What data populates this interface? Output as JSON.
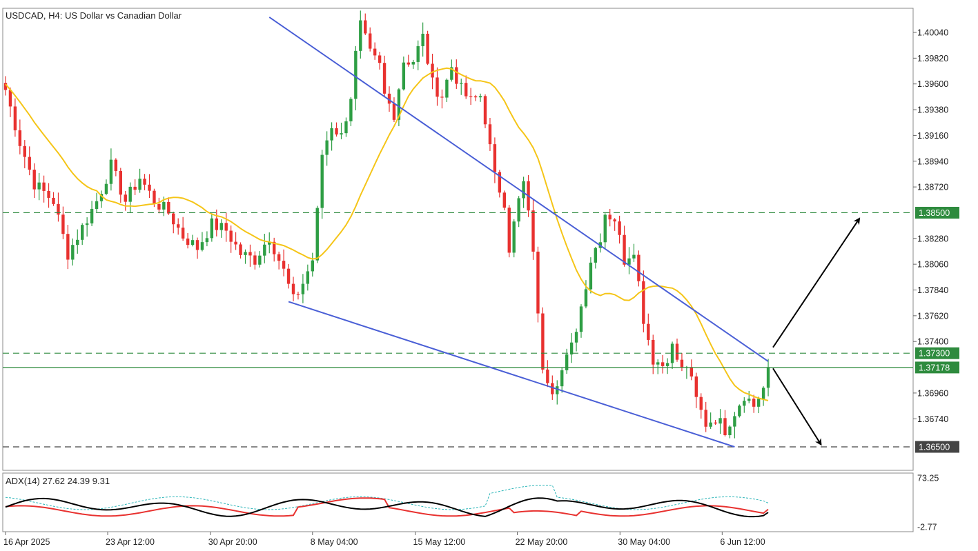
{
  "chart_data": {
    "type": "candlestick",
    "title": "USDCAD, H4:  US Dollar vs Canadian Dollar",
    "price_axis": {
      "range": [
        1.364,
        1.4055
      ],
      "ticks": [
        "1.40040",
        "1.39820",
        "1.39600",
        "1.39380",
        "1.39160",
        "1.38940",
        "1.38720",
        "1.38500",
        "1.38280",
        "1.38060",
        "1.37840",
        "1.37620",
        "1.37400",
        "1.37300",
        "1.37178",
        "1.36960",
        "1.36740",
        "1.36500"
      ]
    },
    "time_axis": {
      "ticks": [
        "16 Apr 2025",
        "23 Apr 12:00",
        "30 Apr 20:00",
        "8 May 04:00",
        "15 May 12:00",
        "22 May 20:00",
        "30 May 04:00",
        "6 Jun 12:00"
      ]
    },
    "levels": [
      {
        "price": 1.385,
        "label": "1.38500",
        "style": "dashed",
        "color": "#2e8b3e"
      },
      {
        "price": 1.373,
        "label": "1.37300",
        "style": "dashed",
        "color": "#2e8b3e"
      },
      {
        "price": 1.37178,
        "label": "1.37178",
        "style": "solid",
        "color": "#2e8b3e"
      },
      {
        "price": 1.365,
        "label": "1.36500",
        "style": "dashed",
        "color": "#444444"
      }
    ],
    "wedge_lines": [
      {
        "from": {
          "bar": 55,
          "price": 1.4017
        },
        "to": {
          "bar": 159,
          "price": 1.3723
        }
      },
      {
        "from": {
          "bar": 59,
          "price": 1.3774
        },
        "to": {
          "bar": 152,
          "price": 1.365
        }
      }
    ],
    "arrows": [
      {
        "from": {
          "bar": 160,
          "price": 1.3735
        },
        "to": {
          "bar": 178,
          "price": 1.3845
        }
      },
      {
        "from": {
          "bar": 160,
          "price": 1.3717
        },
        "to": {
          "bar": 170,
          "price": 1.3652
        }
      }
    ],
    "candle_count": 160,
    "ma_color": "#f5c518",
    "bull_color": "#2e9e44",
    "bear_color": "#e8312f",
    "adx": {
      "label": "ADX(14) 27.62 24.39 9.31",
      "ticks": [
        "73.25",
        "-2.77"
      ],
      "range": [
        -2.77,
        73.25
      ],
      "adx_value": 27.62,
      "plus_di": 24.39,
      "minus_di": 9.31,
      "colors": {
        "adx": "#000000",
        "plus_di": "#e8312f",
        "minus_di": "#2bb5b8"
      }
    },
    "colors": {
      "level_tag": "#2e8b3e",
      "level_tag_dark": "#444444",
      "wedge": "#4a5fd6",
      "arrow": "#000000"
    }
  }
}
